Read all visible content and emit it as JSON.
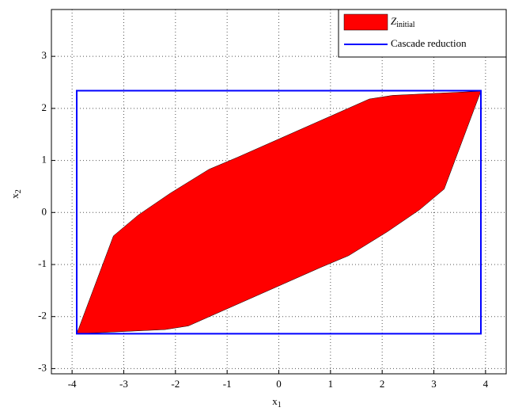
{
  "chart_data": {
    "type": "polygon",
    "xlabel": "x",
    "xlabel_subscript": "1",
    "ylabel": "x",
    "ylabel_subscript": "2",
    "xlim": [
      -4.4,
      4.4
    ],
    "ylim": [
      -3.1,
      3.9
    ],
    "xticks": [
      -4,
      -3,
      -2,
      -1,
      0,
      1,
      2,
      3,
      4
    ],
    "yticks": [
      -3,
      -2,
      -1,
      0,
      1,
      2,
      3
    ],
    "grid": true,
    "legend": "upper right",
    "series": [
      {
        "name": "Z",
        "name_subscript": "initial",
        "color": "#ff0000",
        "filled": true,
        "x": [
          -3.91,
          -3.2,
          -2.72,
          -2.1,
          -1.35,
          -0.8,
          1.75,
          2.2,
          3.91,
          3.2,
          2.72,
          2.1,
          1.35,
          0.8,
          -1.75,
          -2.2
        ],
        "y": [
          -2.33,
          -0.45,
          -0.05,
          0.37,
          0.83,
          1.06,
          2.18,
          2.25,
          2.33,
          0.45,
          0.05,
          -0.37,
          -0.83,
          -1.06,
          -2.18,
          -2.25
        ]
      },
      {
        "name": "Cascade reduction",
        "color": "#0000ff",
        "filled": false,
        "x": [
          -3.91,
          3.91,
          3.91,
          -3.91
        ],
        "y": [
          -2.33,
          -2.33,
          2.34,
          2.34
        ]
      }
    ]
  }
}
